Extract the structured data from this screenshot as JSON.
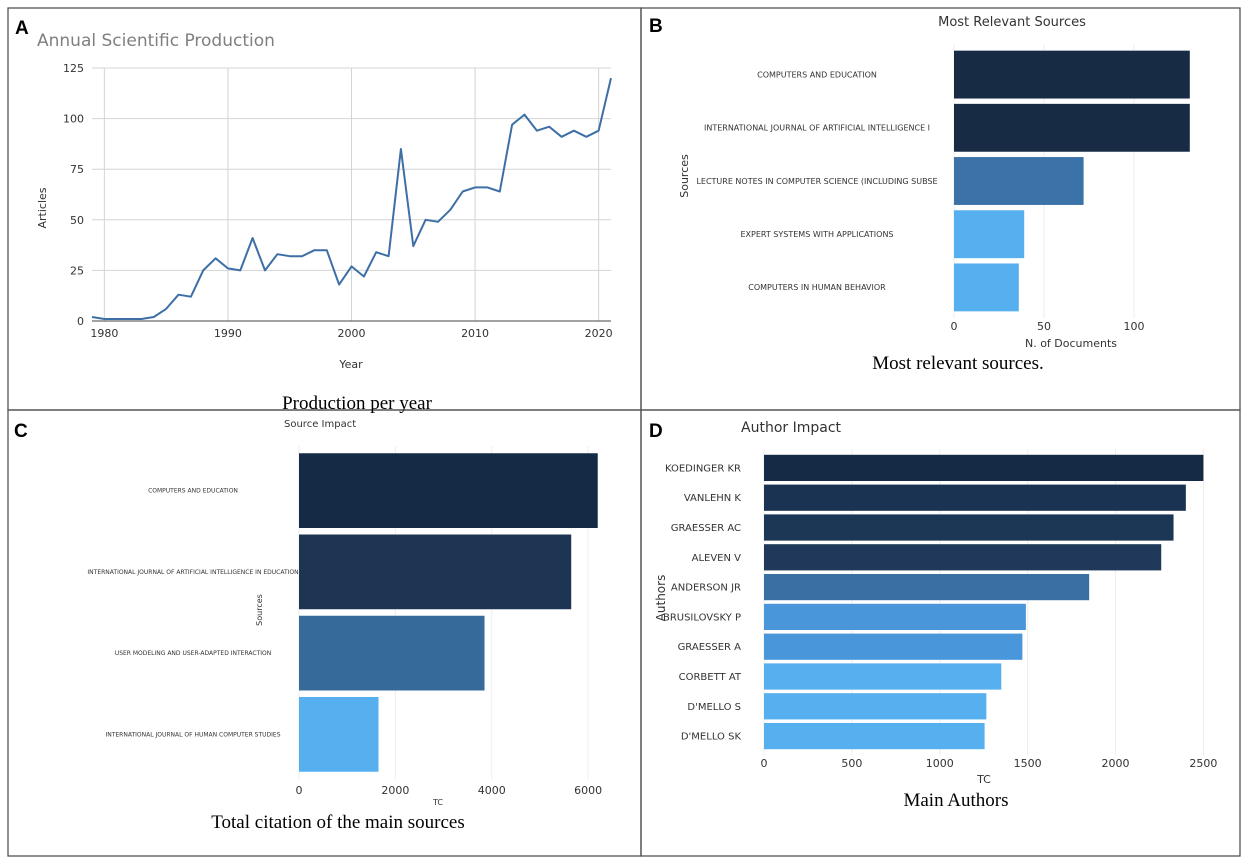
{
  "panels": {
    "A": {
      "letter": "A",
      "caption": "Production per year"
    },
    "B": {
      "letter": "B",
      "caption": "Most relevant sources."
    },
    "C": {
      "letter": "C",
      "caption": "Total citation of the main sources"
    },
    "D": {
      "letter": "D",
      "caption": "Main Authors"
    }
  },
  "colors": {
    "line": "#3d6fa6",
    "dark": "#172b45",
    "mid": "#3b72a8",
    "light": "#56b0f0"
  },
  "chart_data": [
    {
      "id": "A",
      "type": "line",
      "title": "Annual Scientific Production",
      "xlabel": "Year",
      "ylabel": "Articles",
      "xlim": [
        1979,
        2021
      ],
      "ylim": [
        0,
        125
      ],
      "xticks": [
        1980,
        1990,
        2000,
        2010,
        2020
      ],
      "yticks": [
        0,
        25,
        50,
        75,
        100,
        125
      ],
      "x": [
        1979,
        1980,
        1981,
        1982,
        1983,
        1984,
        1985,
        1986,
        1987,
        1988,
        1989,
        1990,
        1991,
        1992,
        1993,
        1994,
        1995,
        1996,
        1997,
        1998,
        1999,
        2000,
        2001,
        2002,
        2003,
        2004,
        2005,
        2006,
        2007,
        2008,
        2009,
        2010,
        2011,
        2012,
        2013,
        2014,
        2015,
        2016,
        2017,
        2018,
        2019,
        2020,
        2021
      ],
      "y": [
        2,
        1,
        1,
        1,
        1,
        2,
        6,
        13,
        12,
        25,
        31,
        26,
        25,
        41,
        25,
        33,
        32,
        32,
        35,
        35,
        18,
        27,
        22,
        34,
        32,
        85,
        37,
        50,
        49,
        55,
        64,
        66,
        66,
        64,
        97,
        102,
        94,
        96,
        91,
        94,
        91,
        94,
        120
      ]
    },
    {
      "id": "B",
      "type": "bar",
      "orientation": "horizontal",
      "title": "Most Relevant Sources",
      "xlabel": "N. of Documents",
      "ylabel": "Sources",
      "xlim": [
        0,
        135
      ],
      "xticks": [
        0,
        50,
        100
      ],
      "categories": [
        "COMPUTERS AND EDUCATION",
        "INTERNATIONAL JOURNAL OF ARTIFICIAL INTELLIGENCE I",
        "LECTURE NOTES IN COMPUTER SCIENCE (INCLUDING SUBSE",
        "EXPERT SYSTEMS WITH APPLICATIONS",
        "COMPUTERS IN HUMAN BEHAVIOR"
      ],
      "values": [
        131,
        131,
        72,
        39,
        36
      ],
      "colors": [
        "#172b45",
        "#172b45",
        "#3b72a8",
        "#56b0f0",
        "#56b0f0"
      ]
    },
    {
      "id": "C",
      "type": "bar",
      "orientation": "horizontal",
      "title": "Source Impact",
      "xlabel": "TC",
      "ylabel": "Sources",
      "xlim": [
        0,
        6600
      ],
      "xticks": [
        0,
        2000,
        4000,
        6000
      ],
      "categories": [
        "COMPUTERS AND EDUCATION",
        "INTERNATIONAL JOURNAL OF ARTIFICIAL INTELLIGENCE IN EDUCATION",
        "USER MODELING AND USER-ADAPTED INTERACTION",
        "INTERNATIONAL JOURNAL OF HUMAN COMPUTER STUDIES"
      ],
      "values": [
        6200,
        5650,
        3850,
        1650
      ],
      "colors": [
        "#152a44",
        "#1d3552",
        "#356a9a",
        "#56b0f0"
      ]
    },
    {
      "id": "D",
      "type": "bar",
      "orientation": "horizontal",
      "title": "Author Impact",
      "xlabel": "TC",
      "ylabel": "Authors",
      "xlim": [
        0,
        2600
      ],
      "xticks": [
        0,
        500,
        1000,
        1500,
        2000,
        2500
      ],
      "categories": [
        "KOEDINGER KR",
        "VANLEHN K",
        "GRAESSER AC",
        "ALEVEN V",
        "ANDERSON JR",
        "BRUSILOVSKY P",
        "GRAESSER A",
        "CORBETT AT",
        "D'MELLO S",
        "D'MELLO SK"
      ],
      "values": [
        2500,
        2400,
        2330,
        2260,
        1850,
        1490,
        1470,
        1350,
        1265,
        1255
      ],
      "colors": [
        "#152a44",
        "#1b3352",
        "#1c3656",
        "#20395a",
        "#3a6fa4",
        "#4a96da",
        "#4a96da",
        "#56b0f0",
        "#56b0f0",
        "#56b0f0"
      ]
    }
  ]
}
